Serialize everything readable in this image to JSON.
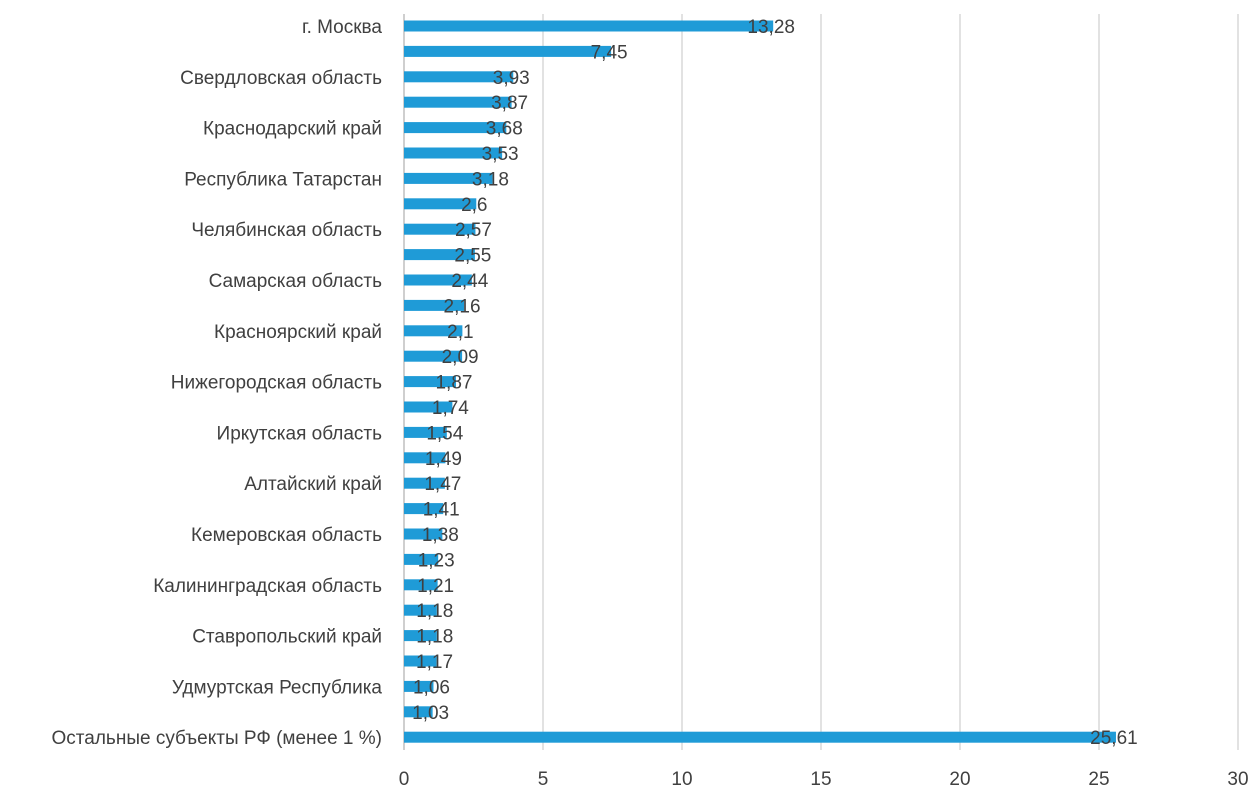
{
  "chart_data": {
    "type": "bar",
    "orientation": "horizontal",
    "title": "",
    "xlabel": "",
    "ylabel": "",
    "xlim": [
      0,
      30
    ],
    "x_ticks": [
      "0",
      "5",
      "10",
      "15",
      "20",
      "25",
      "30"
    ],
    "grid": "vertical",
    "legend": "none",
    "bar_color": "#1f9bd7",
    "categories": [
      "г. Москва",
      "",
      "Свердловская область",
      "",
      "Краснодарский край",
      "",
      "Республика Татарстан",
      "",
      "Челябинская область",
      "",
      "Самарская область",
      "",
      "Красноярский край",
      "",
      "Нижегородская область",
      "",
      "Иркутская область",
      "",
      "Алтайский край",
      "",
      "Кемеровская область",
      "",
      "Калининградская область",
      "",
      "Ставропольский край",
      "",
      "Удмуртская Республика",
      "",
      "Остальные субъекты РФ (менее 1 %)"
    ],
    "values": [
      13.28,
      7.45,
      3.93,
      3.87,
      3.68,
      3.53,
      3.18,
      2.6,
      2.57,
      2.55,
      2.44,
      2.16,
      2.1,
      2.09,
      1.87,
      1.74,
      1.54,
      1.49,
      1.47,
      1.41,
      1.38,
      1.23,
      1.21,
      1.18,
      1.18,
      1.17,
      1.06,
      1.03,
      25.61
    ],
    "data_labels": [
      "13,28",
      "7,45",
      "3,93",
      "3,87",
      "3,68",
      "3,53",
      "3,18",
      "2,6",
      "2,57",
      "2,55",
      "2,44",
      "2,16",
      "2,1",
      "2,09",
      "1,87",
      "1,74",
      "1,54",
      "1,49",
      "1,47",
      "1,41",
      "1,38",
      "1,23",
      "1,21",
      "1,18",
      "1,18",
      "1,17",
      "1,06",
      "1,03",
      "25,61"
    ]
  }
}
